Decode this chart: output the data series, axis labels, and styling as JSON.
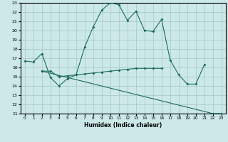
{
  "xlabel": "Humidex (Indice chaleur)",
  "bg_color": "#cce8e8",
  "grid_color": "#aacccc",
  "line_color": "#1a6b5a",
  "line1_x": [
    0,
    1,
    2,
    3,
    4,
    5,
    6,
    7,
    8,
    9,
    10,
    11,
    12,
    13,
    14,
    15,
    16,
    17,
    18,
    19,
    20,
    21
  ],
  "line1_y": [
    16.7,
    16.6,
    17.5,
    14.9,
    14.0,
    14.8,
    15.2,
    18.2,
    20.4,
    22.2,
    23.0,
    22.8,
    21.1,
    22.1,
    20.0,
    19.9,
    21.2,
    16.8,
    15.2,
    14.2,
    14.2,
    16.3
  ],
  "line2_x": [
    2,
    3,
    4,
    5,
    6,
    7,
    8,
    9,
    10,
    11,
    12,
    13,
    14,
    15,
    16
  ],
  "line2_y": [
    15.6,
    15.6,
    15.0,
    15.1,
    15.2,
    15.3,
    15.4,
    15.5,
    15.6,
    15.7,
    15.8,
    15.9,
    15.9,
    15.9,
    15.9
  ],
  "line3_x": [
    2,
    22,
    23
  ],
  "line3_y": [
    15.6,
    11.0,
    11.0
  ],
  "ylim": [
    11,
    23
  ],
  "xlim": [
    -0.5,
    23.5
  ],
  "yticks": [
    11,
    12,
    13,
    14,
    15,
    16,
    17,
    18,
    19,
    20,
    21,
    22,
    23
  ],
  "xticks": [
    0,
    1,
    2,
    3,
    4,
    5,
    6,
    7,
    8,
    9,
    10,
    11,
    12,
    13,
    14,
    15,
    16,
    17,
    18,
    19,
    20,
    21,
    22,
    23
  ]
}
